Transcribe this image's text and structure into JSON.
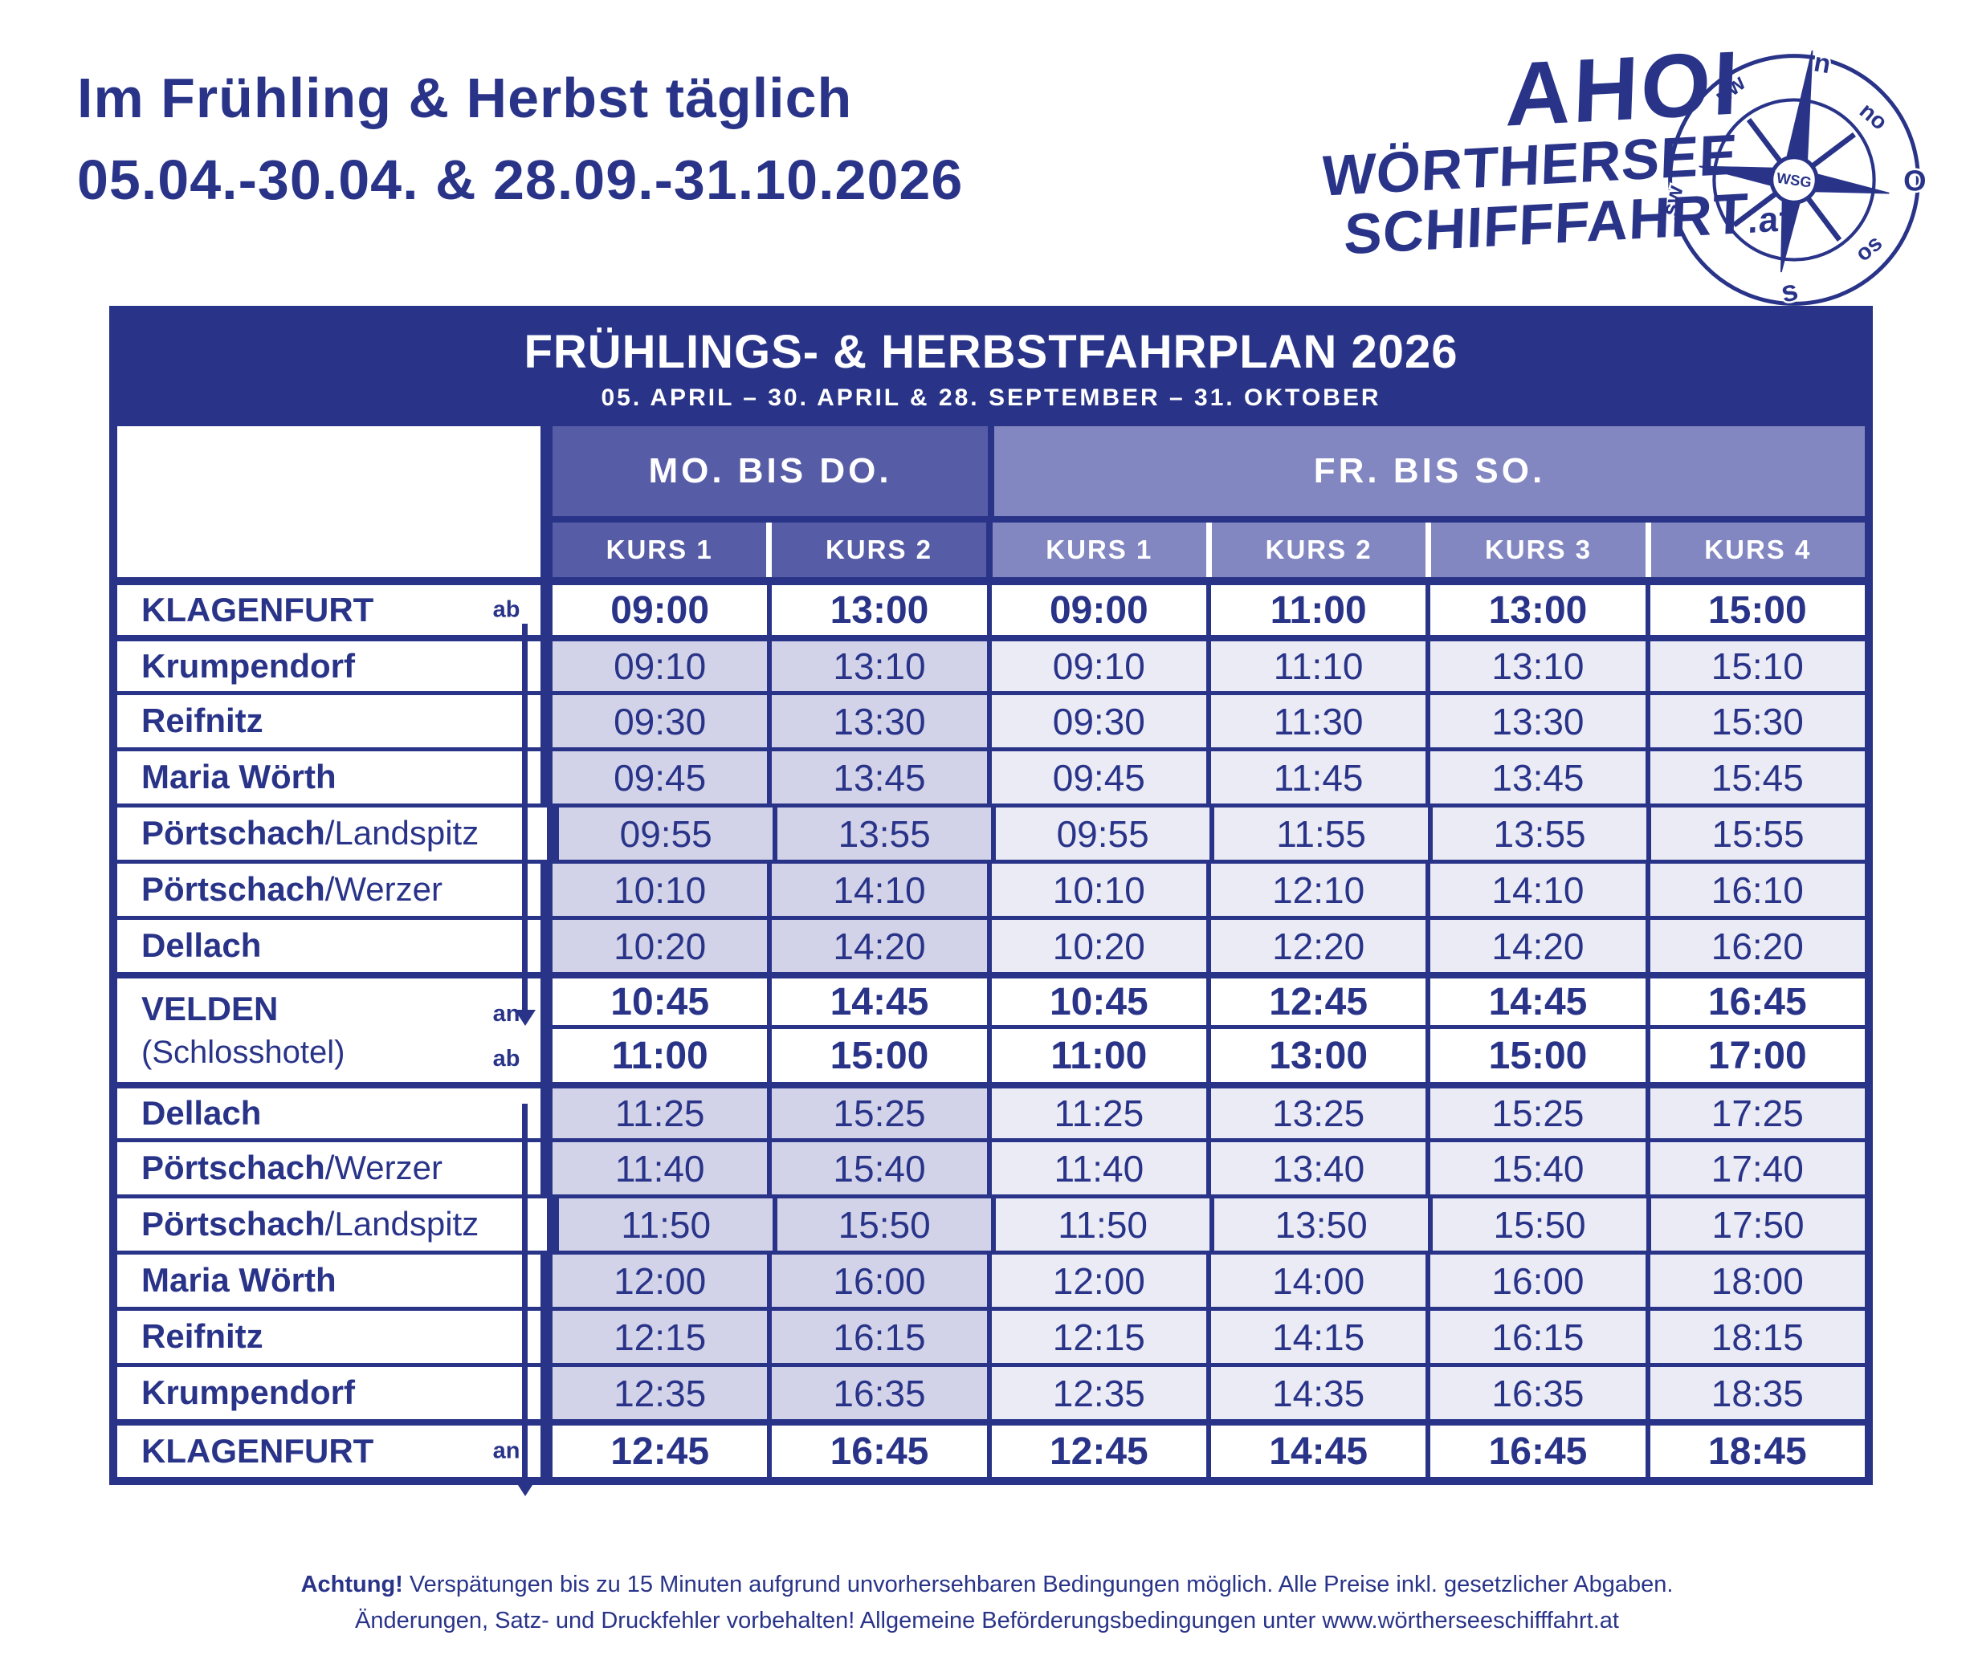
{
  "page": {
    "heading_line1": "Im Frühling & Herbst täglich",
    "heading_line2": "05.04.-30.04. & 28.09.-31.10.2026"
  },
  "logo": {
    "line1": "AHOI",
    "line2": "WÖRTHERSEE",
    "line3": "SCHIFFFAHRT",
    "tld": ".at",
    "compass": {
      "center": "WSG",
      "points": [
        "n",
        "nw",
        "no",
        "O",
        "os",
        "s",
        "sw"
      ]
    }
  },
  "colors": {
    "navy": "#293489",
    "mo_header": "#575ca7",
    "fr_header": "#8286c1",
    "mo_cell": "#d2d3e9",
    "fr_cell": "#eaebf5"
  },
  "table": {
    "title": "FRÜHLINGS- & HERBSTFAHRPLAN 2026",
    "subtitle": "05. APRIL – 30. APRIL & 28. SEPTEMBER – 31. OKTOBER",
    "groups": [
      {
        "label": "MO. BIS DO.",
        "courses": [
          "KURS 1",
          "KURS 2"
        ]
      },
      {
        "label": "FR. BIS SO.",
        "courses": [
          "KURS 1",
          "KURS 2",
          "KURS 3",
          "KURS 4"
        ]
      }
    ],
    "rows": [
      {
        "type": "major",
        "sep": 0,
        "station": "KLAGENFURT",
        "marker": "ab",
        "times": [
          "09:00",
          "13:00",
          "09:00",
          "11:00",
          "13:00",
          "15:00"
        ]
      },
      {
        "type": "minor",
        "sep": 8,
        "station": "Krumpendorf",
        "rest": "",
        "times": [
          "09:10",
          "13:10",
          "09:10",
          "11:10",
          "13:10",
          "15:10"
        ]
      },
      {
        "type": "minor",
        "sep": 5,
        "station": "Reifnitz",
        "rest": "",
        "times": [
          "09:30",
          "13:30",
          "09:30",
          "11:30",
          "13:30",
          "15:30"
        ]
      },
      {
        "type": "minor",
        "sep": 5,
        "station": "Maria Wörth",
        "rest": "",
        "times": [
          "09:45",
          "13:45",
          "09:45",
          "11:45",
          "13:45",
          "15:45"
        ]
      },
      {
        "type": "minor",
        "sep": 5,
        "station": "Pörtschach",
        "rest": "/Landspitz",
        "times": [
          "09:55",
          "13:55",
          "09:55",
          "11:55",
          "13:55",
          "15:55"
        ]
      },
      {
        "type": "minor",
        "sep": 5,
        "station": "Pörtschach",
        "rest": "/Werzer",
        "times": [
          "10:10",
          "14:10",
          "10:10",
          "12:10",
          "14:10",
          "16:10"
        ]
      },
      {
        "type": "minor",
        "sep": 5,
        "station": "Dellach",
        "rest": "",
        "times": [
          "10:20",
          "14:20",
          "10:20",
          "12:20",
          "14:20",
          "16:20"
        ]
      },
      {
        "type": "velden",
        "sep": 8,
        "station": "VELDEN",
        "sub": "(Schlosshotel)",
        "marker_an": "an",
        "marker_ab": "ab",
        "times_an": [
          "10:45",
          "14:45",
          "10:45",
          "12:45",
          "14:45",
          "16:45"
        ],
        "times_ab": [
          "11:00",
          "15:00",
          "11:00",
          "13:00",
          "15:00",
          "17:00"
        ]
      },
      {
        "type": "minor",
        "sep": 8,
        "station": "Dellach",
        "rest": "",
        "times": [
          "11:25",
          "15:25",
          "11:25",
          "13:25",
          "15:25",
          "17:25"
        ]
      },
      {
        "type": "minor",
        "sep": 5,
        "station": "Pörtschach",
        "rest": "/Werzer",
        "times": [
          "11:40",
          "15:40",
          "11:40",
          "13:40",
          "15:40",
          "17:40"
        ]
      },
      {
        "type": "minor",
        "sep": 5,
        "station": "Pörtschach",
        "rest": "/Landspitz",
        "times": [
          "11:50",
          "15:50",
          "11:50",
          "13:50",
          "15:50",
          "17:50"
        ]
      },
      {
        "type": "minor",
        "sep": 5,
        "station": "Maria Wörth",
        "rest": "",
        "times": [
          "12:00",
          "16:00",
          "12:00",
          "14:00",
          "16:00",
          "18:00"
        ]
      },
      {
        "type": "minor",
        "sep": 5,
        "station": "Reifnitz",
        "rest": "",
        "times": [
          "12:15",
          "16:15",
          "12:15",
          "14:15",
          "16:15",
          "18:15"
        ]
      },
      {
        "type": "minor",
        "sep": 5,
        "station": "Krumpendorf",
        "rest": "",
        "times": [
          "12:35",
          "16:35",
          "12:35",
          "14:35",
          "16:35",
          "18:35"
        ]
      },
      {
        "type": "major",
        "sep": 8,
        "last": true,
        "station": "KLAGENFURT",
        "marker": "an",
        "times": [
          "12:45",
          "16:45",
          "12:45",
          "14:45",
          "16:45",
          "18:45"
        ]
      }
    ]
  },
  "footer": {
    "achtung": "Achtung!",
    "line1": " Verspätungen bis zu 15 Minuten aufgrund unvorhersehbaren Bedingungen möglich. Alle Preise inkl. gesetzlicher Abgaben.",
    "line2": "Änderungen, Satz- und Druckfehler vorbehalten!  Allgemeine Beförderungsbedingungen unter www.wörtherseeschifffahrt.at"
  }
}
